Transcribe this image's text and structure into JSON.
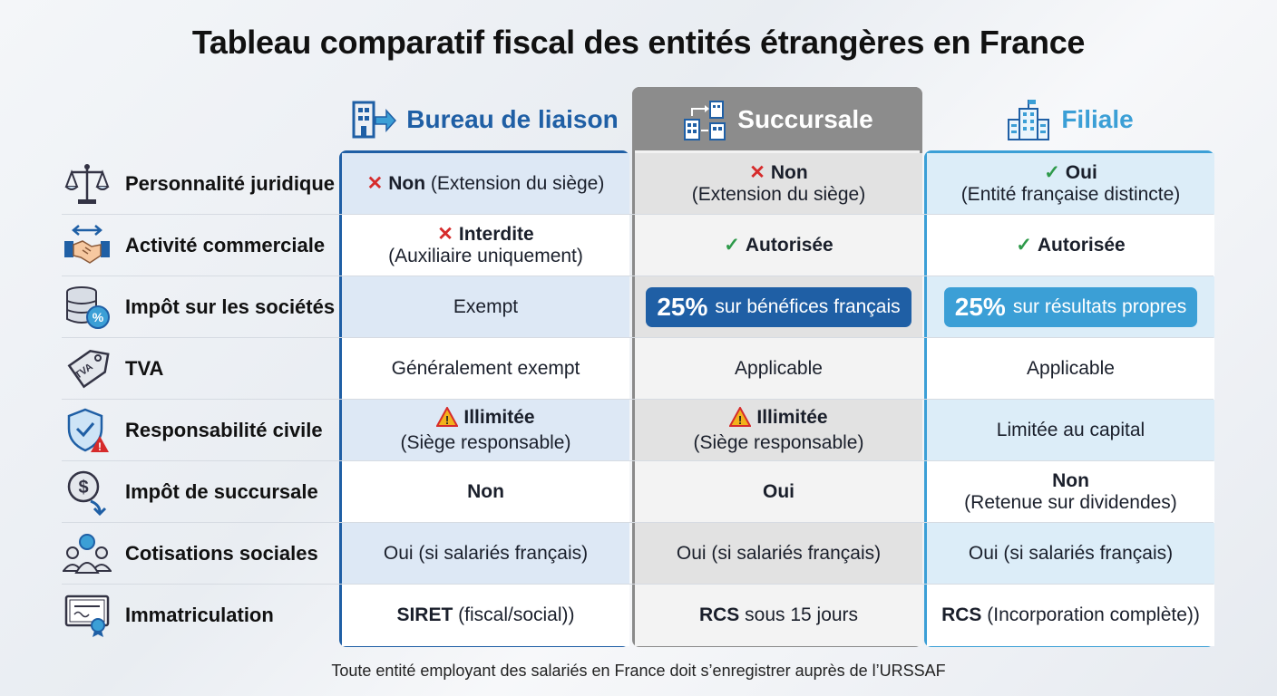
{
  "title": "Tableau comparatif fiscal des entités étrangères en France",
  "columns": [
    {
      "name": "Bureau de liaison",
      "icon": "building-arrow-icon",
      "color": "#1f5fa5"
    },
    {
      "name": "Succursale",
      "icon": "branch-buildings-icon",
      "color": "#8c8c8c"
    },
    {
      "name": "Filiale",
      "icon": "office-building-flag-icon",
      "color": "#3b9fd6"
    }
  ],
  "rows": [
    {
      "label": "Personnalité juridique",
      "icon": "scales-icon",
      "bureau": {
        "main": "Non",
        "sub": "(Extension du siège)"
      },
      "succursale": {
        "main": "Non",
        "sub": "(Extension du siège)"
      },
      "filiale": {
        "main": "Oui",
        "sub": "(Entité française distincte)"
      }
    },
    {
      "label": "Activité commerciale",
      "icon": "handshake-icon",
      "bureau": {
        "main": "Interdite",
        "sub": "(Auxiliaire uniquement)"
      },
      "succursale": {
        "main": "Autorisée"
      },
      "filiale": {
        "main": "Autorisée"
      }
    },
    {
      "label": "Impôt sur les sociétés",
      "icon": "coins-percent-icon",
      "bureau": {
        "text": "Exempt"
      },
      "succursale": {
        "big": "25%",
        "rest": "sur bénéfices français"
      },
      "filiale": {
        "big": "25%",
        "rest": "sur résultats propres"
      }
    },
    {
      "label": "TVA",
      "icon": "tax-tag-icon",
      "bureau": {
        "text": "Généralement exempt"
      },
      "succursale": {
        "text": "Applicable"
      },
      "filiale": {
        "text": "Applicable"
      }
    },
    {
      "label": "Responsabilité civile",
      "icon": "shield-warning-icon",
      "bureau": {
        "main": "Illimitée",
        "sub": "(Siège responsable)"
      },
      "succursale": {
        "main": "Illimitée",
        "sub": "(Siège responsable)"
      },
      "filiale": {
        "text": "Limitée au capital"
      }
    },
    {
      "label": "Impôt de succursale",
      "icon": "dollar-coin-arrow-icon",
      "bureau": {
        "text": "Non"
      },
      "succursale": {
        "text": "Oui"
      },
      "filiale": {
        "main": "Non",
        "sub": "(Retenue sur dividendes)"
      }
    },
    {
      "label": "Cotisations sociales",
      "icon": "people-group-icon",
      "bureau": {
        "text": "Oui (si salariés français)"
      },
      "succursale": {
        "text": "Oui (si salariés français)"
      },
      "filiale": {
        "text": "Oui (si salariés français)"
      }
    },
    {
      "label": "Immatriculation",
      "icon": "certificate-icon",
      "bureau": {
        "bold": "SIRET",
        "rest": "(fiscal/social))"
      },
      "succursale": {
        "bold": "RCS",
        "rest": "sous 15 jours"
      },
      "filiale": {
        "bold": "RCS",
        "rest": "(Incorporation complète))"
      }
    }
  ],
  "footnote": "Toute entité employant des salariés en France doit s’enregistrer auprès de l’URSSAF",
  "colors": {
    "cross": "#d62b2b",
    "check": "#2e9a4a",
    "warning": "#f2b21b"
  }
}
